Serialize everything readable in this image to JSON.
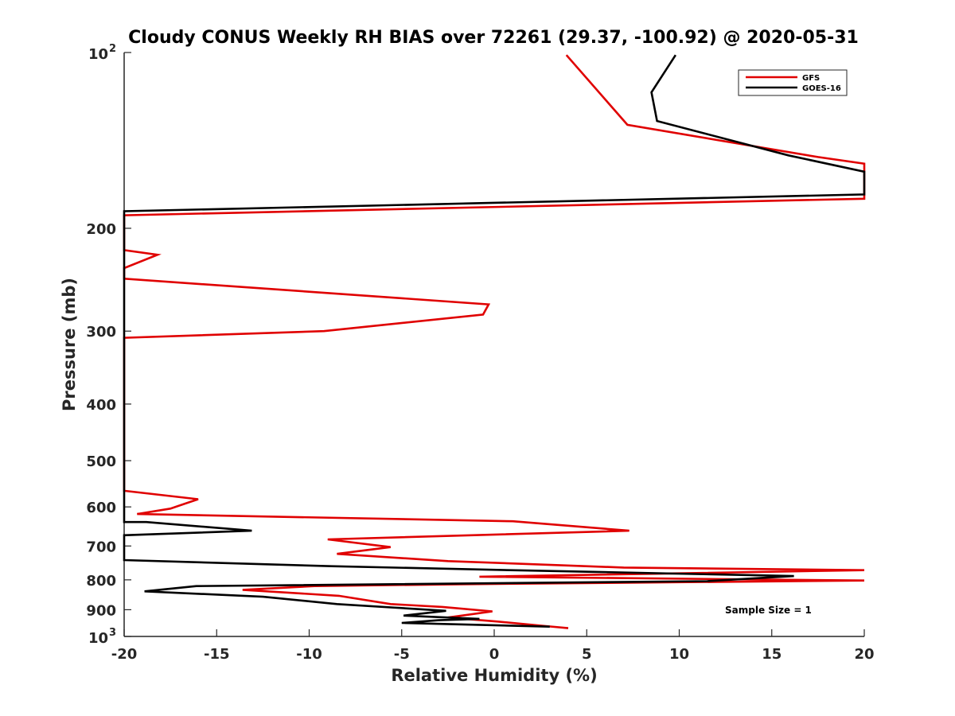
{
  "chart_data": {
    "type": "line",
    "title": "Cloudy CONUS Weekly RH BIAS over 72261 (29.37, -100.92) @ 2020-05-31",
    "xlabel": "Relative Humidity (%)",
    "ylabel": "Pressure (mb)",
    "xlim": [
      -20,
      20
    ],
    "ylim": [
      100,
      1000
    ],
    "yscale": "log",
    "y_reversed": true,
    "grid": false,
    "legend_position": "top-right",
    "x_ticks": [
      "-20",
      "-15",
      "-10",
      "-5",
      "0",
      "5",
      "10",
      "15",
      "20"
    ],
    "y_ticks": [
      {
        "value": 100,
        "base": "10",
        "exp": "2"
      },
      {
        "value": 200,
        "label": "200"
      },
      {
        "value": 300,
        "label": "300"
      },
      {
        "value": 400,
        "label": "400"
      },
      {
        "value": 500,
        "label": "500"
      },
      {
        "value": 600,
        "label": "600"
      },
      {
        "value": 700,
        "label": "700"
      },
      {
        "value": 800,
        "label": "800"
      },
      {
        "value": 900,
        "label": "900"
      },
      {
        "value": 1000,
        "base": "10",
        "exp": "3"
      }
    ],
    "series": [
      {
        "name": "GFS",
        "color": "#e00000",
        "points": [
          [
            4.0,
            968
          ],
          [
            2.8,
            960
          ],
          [
            0.2,
            943
          ],
          [
            -2.5,
            928
          ],
          [
            -0.1,
            906
          ],
          [
            -2.8,
            890
          ],
          [
            -5.6,
            880
          ],
          [
            -8.4,
            852
          ],
          [
            -13.6,
            832
          ],
          [
            -9.7,
            820
          ],
          [
            -1.9,
            814
          ],
          [
            20,
            802
          ],
          [
            -0.8,
            790
          ],
          [
            20,
            770
          ],
          [
            7.0,
            762
          ],
          [
            -2.5,
            743
          ],
          [
            -8.5,
            722
          ],
          [
            -5.6,
            703
          ],
          [
            -9.0,
            682
          ],
          [
            7.3,
            659
          ],
          [
            1.0,
            635
          ],
          [
            -19.3,
            617
          ],
          [
            -17.5,
            604
          ],
          [
            -16.0,
            582
          ],
          [
            -20,
            563
          ],
          [
            -20,
            308
          ],
          [
            -9.2,
            300
          ],
          [
            -0.6,
            281
          ],
          [
            -0.3,
            270
          ],
          [
            -20,
            244
          ],
          [
            -20,
            234
          ],
          [
            -18.2,
            222
          ],
          [
            -20,
            218
          ],
          [
            -20,
            190
          ],
          [
            20,
            178
          ],
          [
            20,
            155
          ],
          [
            17.5,
            151
          ],
          [
            7.2,
            133
          ],
          [
            3.9,
            101
          ]
        ]
      },
      {
        "name": "GOES-16",
        "color": "#000000",
        "points": [
          [
            3.0,
            962
          ],
          [
            -5.0,
            948
          ],
          [
            -3.0,
            938
          ],
          [
            -0.8,
            933
          ],
          [
            -4.9,
            921
          ],
          [
            -2.6,
            904
          ],
          [
            -8.5,
            880
          ],
          [
            -12.5,
            855
          ],
          [
            -18.9,
            837
          ],
          [
            -16.1,
            820
          ],
          [
            11.5,
            804
          ],
          [
            16.2,
            788
          ],
          [
            1.7,
            771
          ],
          [
            -8.8,
            758
          ],
          [
            -20,
            740
          ],
          [
            -20,
            671
          ],
          [
            -13.1,
            659
          ],
          [
            -18.8,
            637
          ],
          [
            -20,
            637
          ],
          [
            -20,
            187
          ],
          [
            20,
            175
          ],
          [
            20,
            160
          ],
          [
            15.9,
            150
          ],
          [
            8.8,
            131
          ],
          [
            8.5,
            117
          ],
          [
            9.8,
            101
          ]
        ]
      }
    ],
    "annotation": "Sample Size = 1"
  }
}
